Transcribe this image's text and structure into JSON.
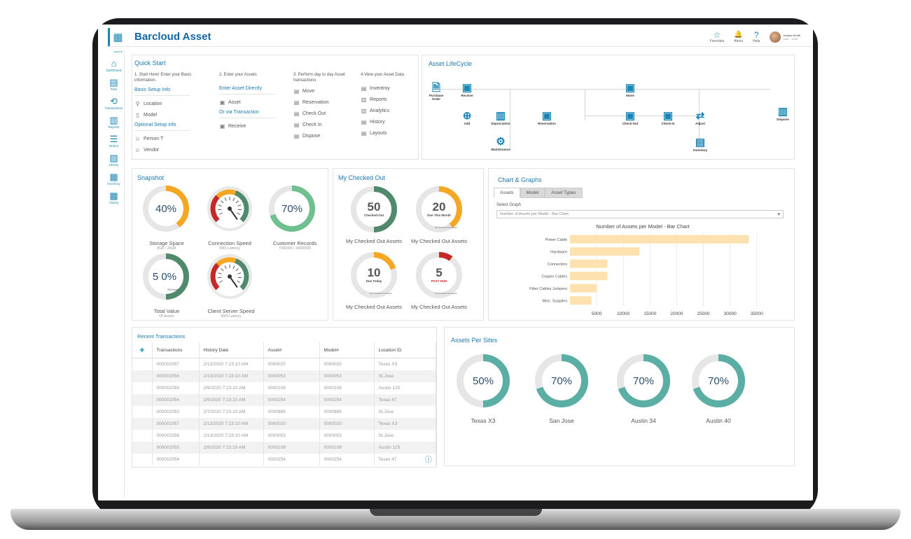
{
  "header": {
    "app_title": "Barcloud Asset",
    "icons": [
      {
        "glyph": "☆",
        "label": "Favorites"
      },
      {
        "glyph": "🔔",
        "label": "Alerts"
      },
      {
        "glyph": "?",
        "label": "Help"
      }
    ],
    "user": {
      "name": "Jessica Smith",
      "role": "User · 1345"
    }
  },
  "sidebar": {
    "collapse": "Open ▸",
    "items": [
      {
        "glyph": "⌂",
        "label": "Dashboard"
      },
      {
        "glyph": "▤",
        "label": "Files"
      },
      {
        "glyph": "⟲",
        "label": "Transactions"
      },
      {
        "glyph": "▥",
        "label": "Reports"
      },
      {
        "glyph": "☰",
        "label": "Orders"
      },
      {
        "glyph": "▨",
        "label": "Library"
      },
      {
        "glyph": "▦",
        "label": "Inventory"
      },
      {
        "glyph": "▩",
        "label": "History"
      }
    ]
  },
  "quick_start": {
    "title": "Quick Start",
    "col1": {
      "step": "1. Start Here! Enter your Basic information.",
      "sub1": "Basic Setup Info",
      "items1": [
        {
          "glyph": "⚲",
          "label": "Location"
        },
        {
          "glyph": "▯",
          "label": "Model"
        }
      ],
      "sub2": "Optional Setup info",
      "items2": [
        {
          "glyph": "☺",
          "label": "Person T"
        },
        {
          "glyph": "☺",
          "label": "Vendor"
        }
      ]
    },
    "col2": {
      "step": "2. Enter your Assets",
      "sub1": "Enter Asset Directly",
      "items1": [
        {
          "glyph": "▣",
          "label": "Asset"
        }
      ],
      "sub2": "Or via Transaction",
      "items2": [
        {
          "glyph": "▣",
          "label": "Receive"
        }
      ]
    },
    "col3": {
      "step": "3. Perform day to day Asset transactions",
      "items": [
        {
          "glyph": "▤",
          "label": "Move"
        },
        {
          "glyph": "▤",
          "label": "Reservation"
        },
        {
          "glyph": "▤",
          "label": "Check Out"
        },
        {
          "glyph": "▤",
          "label": "Check In"
        },
        {
          "glyph": "▤",
          "label": "Dispose"
        }
      ]
    },
    "col4": {
      "step": "4.View your Asset Data",
      "items": [
        {
          "glyph": "▤",
          "label": "Inventroy"
        },
        {
          "glyph": "▥",
          "label": "Reports"
        },
        {
          "glyph": "▥",
          "label": "Analytics"
        },
        {
          "glyph": "▤",
          "label": "History"
        },
        {
          "glyph": "▤",
          "label": "Layouts"
        }
      ]
    }
  },
  "lifecycle": {
    "title": "Asset LifeCycle",
    "nodes": [
      {
        "label": "Purchase Order",
        "glyph": "🗎"
      },
      {
        "label": "Receive",
        "glyph": "▣"
      },
      {
        "label": "Add",
        "glyph": "⊕"
      },
      {
        "label": "Depreciation",
        "glyph": "▥"
      },
      {
        "label": "Maintenance",
        "glyph": "⚙"
      },
      {
        "label": "Reservation",
        "glyph": "▣"
      },
      {
        "label": "Move",
        "glyph": "▣"
      },
      {
        "label": "Check-Out",
        "glyph": "▣"
      },
      {
        "label": "Check-In",
        "glyph": "▣"
      },
      {
        "label": "Adjust",
        "glyph": "⇄"
      },
      {
        "label": "Inventory",
        "glyph": "▤"
      },
      {
        "label": "Dispose",
        "glyph": "▥"
      }
    ]
  },
  "snapshot": {
    "title": "Snapshot",
    "storage": {
      "value_text": "40%",
      "fraction": 0.4,
      "label": "Storage Space",
      "sub": "8GB / 20GB"
    },
    "connection": {
      "label": "Connection Speed",
      "sub": "5MS Latency"
    },
    "customer": {
      "value_text": "70%",
      "fraction": 0.7,
      "label": "Customer Records",
      "sub": "7000000 / 10000000"
    },
    "total": {
      "value_text": "5 0%",
      "fraction": 0.5,
      "inner": "500 Asset",
      "label": "Total Value",
      "sub": "Of Assets"
    },
    "client": {
      "label": "Client Server Speed",
      "sub": "5MS Latency"
    }
  },
  "checked_out": {
    "title": "My Checked Out",
    "items": [
      {
        "value": "50",
        "sub": "Checked-Out",
        "small": "100 Assets",
        "fraction": 0.5,
        "color": "#4e8a6b",
        "label": "My Checked Out Assets"
      },
      {
        "value": "20",
        "sub": "Due This Month",
        "small": "50 Checked-Out Assets",
        "fraction": 0.4,
        "color": "#f5a623",
        "label": "My Checked Out Assets"
      },
      {
        "value": "10",
        "sub": "Due Today",
        "small": "50 Checked-Out Assets",
        "fraction": 0.2,
        "color": "#f5a623",
        "label": "My Checked Out Assets"
      },
      {
        "value": "5",
        "sub": "PAST DUE",
        "small": "50 Checked-Out Assets",
        "fraction": 0.1,
        "color": "#c62828",
        "label": "My Checked Out Assets"
      }
    ]
  },
  "charts": {
    "title": "Chart & Graphs",
    "tabs": [
      "Assets",
      "Model",
      "Asset Types"
    ],
    "select_label": "Select Graph",
    "select_value": "Number of Assets per Model - Bar Chart"
  },
  "chart_data": {
    "type": "bar",
    "orientation": "horizontal",
    "title": "Number of Assets per Model - Bar Chart",
    "categories": [
      "Power Cable",
      "Hardware",
      "Connectors",
      "Copper Cables",
      "Fiber Cables Jumpers",
      "Misc. Supplies"
    ],
    "values": [
      33500,
      13000,
      7000,
      7000,
      5000,
      4000
    ],
    "xticks": [
      5000,
      10000,
      15000,
      20000,
      25000,
      30000,
      35000
    ],
    "xlim": [
      0,
      37000
    ],
    "grid": true,
    "bar_color": "#fde2b0"
  },
  "transactions": {
    "title": "Recent Transactions",
    "add": "+",
    "columns": [
      "Transactions",
      "History Date",
      "Asset#",
      "Model#",
      "Location ID"
    ],
    "rows": [
      [
        "000002057",
        "2/13/2020 7:23:10 AM",
        "0000020",
        "0000020",
        "Texas X3"
      ],
      [
        "000002056",
        "2/13/2020 7:23:10 AM",
        "0000053",
        "0000053",
        "St.Jose"
      ],
      [
        "000002055",
        "2/9/2020 7:23:10 AM",
        "0000108",
        "0000108",
        "Austin 125"
      ],
      [
        "000002054",
        "2/9/2020 7:23:10 AM",
        "0000254",
        "0000254",
        "Texas 47"
      ],
      [
        "000002053",
        "2/7/2020 7:23:10 AM",
        "0000985",
        "0000985",
        "St.Jose"
      ],
      [
        "000002057",
        "2/13/2020 7:23:10 AM",
        "0000020",
        "0000020",
        "Texas X3"
      ],
      [
        "000002056",
        "2/13/2020 7:23:10 AM",
        "0000053",
        "0000053",
        "St.Jose"
      ],
      [
        "000002055",
        "2/9/2020 7:23:10 AM",
        "0000108",
        "0000108",
        "Austin 125"
      ],
      [
        "000002054",
        "",
        "0000254",
        "0000254",
        "Texas 47"
      ]
    ],
    "info_glyph": "ⓘ"
  },
  "sites": {
    "title": "Assets Per Sites",
    "items": [
      {
        "name": "Texas X3",
        "value_text": "50%",
        "fraction": 0.5
      },
      {
        "name": "San Jose",
        "value_text": "70%",
        "fraction": 0.7
      },
      {
        "name": "Austin 34",
        "value_text": "70%",
        "fraction": 0.7
      },
      {
        "name": "Austin 40",
        "value_text": "70%",
        "fraction": 0.7
      }
    ]
  },
  "colors": {
    "accent": "#1b79b0",
    "orange": "#f5a623",
    "green": "#4e8a6b",
    "teal": "#5aaea4",
    "track": "#e6e6e6"
  }
}
